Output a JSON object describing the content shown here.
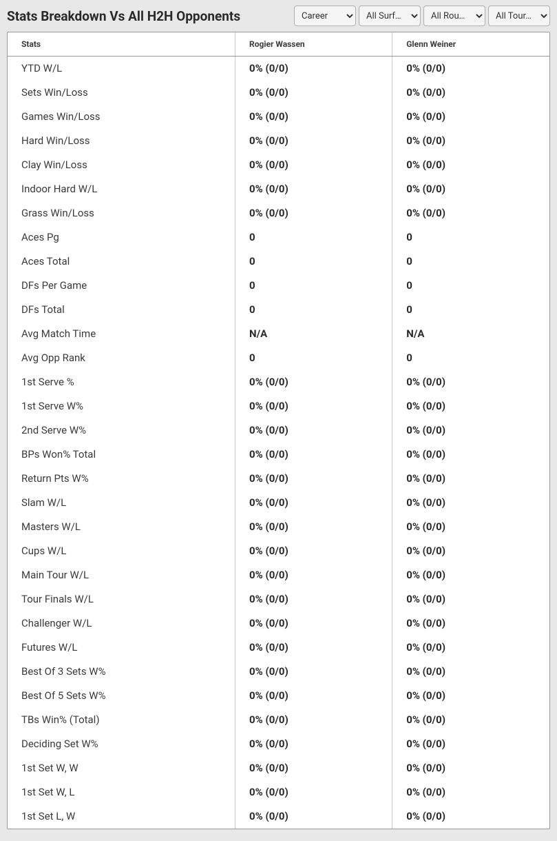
{
  "header": {
    "title": "Stats Breakdown Vs All H2H Opponents"
  },
  "filters": {
    "career": {
      "selected": "Career",
      "options": [
        "Career"
      ]
    },
    "surface": {
      "selected": "All Surf…",
      "options": [
        "All Surf…"
      ]
    },
    "round": {
      "selected": "All Rou…",
      "options": [
        "All Rou…"
      ]
    },
    "tournament": {
      "selected": "All Tour…",
      "options": [
        "All Tour…"
      ]
    }
  },
  "table": {
    "columns": {
      "stats": "Stats",
      "player1": "Rogier Wassen",
      "player2": "Glenn Weiner"
    },
    "rows": [
      {
        "stat": "YTD W/L",
        "p1": "0% (0/0)",
        "p2": "0% (0/0)"
      },
      {
        "stat": "Sets Win/Loss",
        "p1": "0% (0/0)",
        "p2": "0% (0/0)"
      },
      {
        "stat": "Games Win/Loss",
        "p1": "0% (0/0)",
        "p2": "0% (0/0)"
      },
      {
        "stat": "Hard Win/Loss",
        "p1": "0% (0/0)",
        "p2": "0% (0/0)"
      },
      {
        "stat": "Clay Win/Loss",
        "p1": "0% (0/0)",
        "p2": "0% (0/0)"
      },
      {
        "stat": "Indoor Hard W/L",
        "p1": "0% (0/0)",
        "p2": "0% (0/0)"
      },
      {
        "stat": "Grass Win/Loss",
        "p1": "0% (0/0)",
        "p2": "0% (0/0)"
      },
      {
        "stat": "Aces Pg",
        "p1": "0",
        "p2": "0"
      },
      {
        "stat": "Aces Total",
        "p1": "0",
        "p2": "0"
      },
      {
        "stat": "DFs Per Game",
        "p1": "0",
        "p2": "0"
      },
      {
        "stat": "DFs Total",
        "p1": "0",
        "p2": "0"
      },
      {
        "stat": "Avg Match Time",
        "p1": "N/A",
        "p2": "N/A"
      },
      {
        "stat": "Avg Opp Rank",
        "p1": "0",
        "p2": "0"
      },
      {
        "stat": "1st Serve %",
        "p1": "0% (0/0)",
        "p2": "0% (0/0)"
      },
      {
        "stat": "1st Serve W%",
        "p1": "0% (0/0)",
        "p2": "0% (0/0)"
      },
      {
        "stat": "2nd Serve W%",
        "p1": "0% (0/0)",
        "p2": "0% (0/0)"
      },
      {
        "stat": "BPs Won% Total",
        "p1": "0% (0/0)",
        "p2": "0% (0/0)"
      },
      {
        "stat": "Return Pts W%",
        "p1": "0% (0/0)",
        "p2": "0% (0/0)"
      },
      {
        "stat": "Slam W/L",
        "p1": "0% (0/0)",
        "p2": "0% (0/0)"
      },
      {
        "stat": "Masters W/L",
        "p1": "0% (0/0)",
        "p2": "0% (0/0)"
      },
      {
        "stat": "Cups W/L",
        "p1": "0% (0/0)",
        "p2": "0% (0/0)"
      },
      {
        "stat": "Main Tour W/L",
        "p1": "0% (0/0)",
        "p2": "0% (0/0)"
      },
      {
        "stat": "Tour Finals W/L",
        "p1": "0% (0/0)",
        "p2": "0% (0/0)"
      },
      {
        "stat": "Challenger W/L",
        "p1": "0% (0/0)",
        "p2": "0% (0/0)"
      },
      {
        "stat": "Futures W/L",
        "p1": "0% (0/0)",
        "p2": "0% (0/0)"
      },
      {
        "stat": "Best Of 3 Sets W%",
        "p1": "0% (0/0)",
        "p2": "0% (0/0)"
      },
      {
        "stat": "Best Of 5 Sets W%",
        "p1": "0% (0/0)",
        "p2": "0% (0/0)"
      },
      {
        "stat": "TBs Win% (Total)",
        "p1": "0% (0/0)",
        "p2": "0% (0/0)"
      },
      {
        "stat": "Deciding Set W%",
        "p1": "0% (0/0)",
        "p2": "0% (0/0)"
      },
      {
        "stat": "1st Set W, W",
        "p1": "0% (0/0)",
        "p2": "0% (0/0)"
      },
      {
        "stat": "1st Set W, L",
        "p1": "0% (0/0)",
        "p2": "0% (0/0)"
      },
      {
        "stat": "1st Set L, W",
        "p1": "0% (0/0)",
        "p2": "0% (0/0)"
      }
    ]
  },
  "styling": {
    "background_color": "#e8e8e8",
    "table_background": "#ffffff",
    "table_border": "#999999",
    "cell_divider": "#cccccc",
    "header_text_color": "#3a3a3a",
    "stat_label_color": "#3a3a3a",
    "value_color": "#2a2a2a",
    "title_fontsize": 19,
    "header_fontsize": 12,
    "cell_fontsize": 15
  }
}
